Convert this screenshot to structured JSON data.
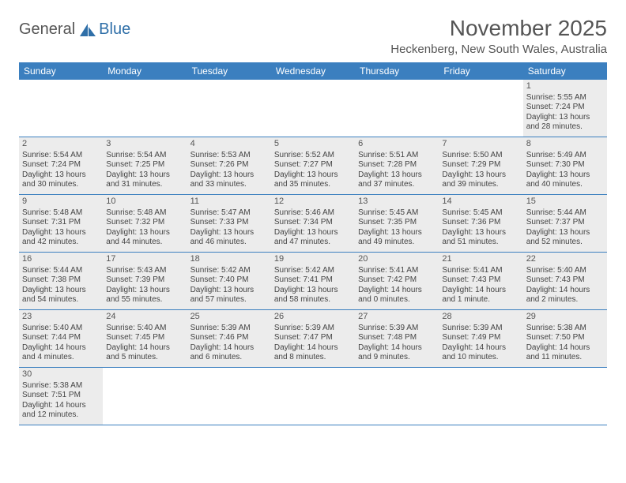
{
  "logo": {
    "text1": "General",
    "text2": "Blue",
    "color_general": "#555555",
    "color_blue": "#2f6fa8",
    "sail_color": "#2f6fa8"
  },
  "title": "November 2025",
  "location": "Heckenberg, New South Wales, Australia",
  "colors": {
    "header_bg": "#3b7fbf",
    "header_text": "#ffffff",
    "shaded_bg": "#ececec",
    "border": "#3b7fbf",
    "text": "#444444"
  },
  "dow": [
    "Sunday",
    "Monday",
    "Tuesday",
    "Wednesday",
    "Thursday",
    "Friday",
    "Saturday"
  ],
  "weeks": [
    [
      null,
      null,
      null,
      null,
      null,
      null,
      {
        "n": "1",
        "sr": "Sunrise: 5:55 AM",
        "ss": "Sunset: 7:24 PM",
        "dl": "Daylight: 13 hours and 28 minutes."
      }
    ],
    [
      {
        "n": "2",
        "sr": "Sunrise: 5:54 AM",
        "ss": "Sunset: 7:24 PM",
        "dl": "Daylight: 13 hours and 30 minutes."
      },
      {
        "n": "3",
        "sr": "Sunrise: 5:54 AM",
        "ss": "Sunset: 7:25 PM",
        "dl": "Daylight: 13 hours and 31 minutes."
      },
      {
        "n": "4",
        "sr": "Sunrise: 5:53 AM",
        "ss": "Sunset: 7:26 PM",
        "dl": "Daylight: 13 hours and 33 minutes."
      },
      {
        "n": "5",
        "sr": "Sunrise: 5:52 AM",
        "ss": "Sunset: 7:27 PM",
        "dl": "Daylight: 13 hours and 35 minutes."
      },
      {
        "n": "6",
        "sr": "Sunrise: 5:51 AM",
        "ss": "Sunset: 7:28 PM",
        "dl": "Daylight: 13 hours and 37 minutes."
      },
      {
        "n": "7",
        "sr": "Sunrise: 5:50 AM",
        "ss": "Sunset: 7:29 PM",
        "dl": "Daylight: 13 hours and 39 minutes."
      },
      {
        "n": "8",
        "sr": "Sunrise: 5:49 AM",
        "ss": "Sunset: 7:30 PM",
        "dl": "Daylight: 13 hours and 40 minutes."
      }
    ],
    [
      {
        "n": "9",
        "sr": "Sunrise: 5:48 AM",
        "ss": "Sunset: 7:31 PM",
        "dl": "Daylight: 13 hours and 42 minutes."
      },
      {
        "n": "10",
        "sr": "Sunrise: 5:48 AM",
        "ss": "Sunset: 7:32 PM",
        "dl": "Daylight: 13 hours and 44 minutes."
      },
      {
        "n": "11",
        "sr": "Sunrise: 5:47 AM",
        "ss": "Sunset: 7:33 PM",
        "dl": "Daylight: 13 hours and 46 minutes."
      },
      {
        "n": "12",
        "sr": "Sunrise: 5:46 AM",
        "ss": "Sunset: 7:34 PM",
        "dl": "Daylight: 13 hours and 47 minutes."
      },
      {
        "n": "13",
        "sr": "Sunrise: 5:45 AM",
        "ss": "Sunset: 7:35 PM",
        "dl": "Daylight: 13 hours and 49 minutes."
      },
      {
        "n": "14",
        "sr": "Sunrise: 5:45 AM",
        "ss": "Sunset: 7:36 PM",
        "dl": "Daylight: 13 hours and 51 minutes."
      },
      {
        "n": "15",
        "sr": "Sunrise: 5:44 AM",
        "ss": "Sunset: 7:37 PM",
        "dl": "Daylight: 13 hours and 52 minutes."
      }
    ],
    [
      {
        "n": "16",
        "sr": "Sunrise: 5:44 AM",
        "ss": "Sunset: 7:38 PM",
        "dl": "Daylight: 13 hours and 54 minutes."
      },
      {
        "n": "17",
        "sr": "Sunrise: 5:43 AM",
        "ss": "Sunset: 7:39 PM",
        "dl": "Daylight: 13 hours and 55 minutes."
      },
      {
        "n": "18",
        "sr": "Sunrise: 5:42 AM",
        "ss": "Sunset: 7:40 PM",
        "dl": "Daylight: 13 hours and 57 minutes."
      },
      {
        "n": "19",
        "sr": "Sunrise: 5:42 AM",
        "ss": "Sunset: 7:41 PM",
        "dl": "Daylight: 13 hours and 58 minutes."
      },
      {
        "n": "20",
        "sr": "Sunrise: 5:41 AM",
        "ss": "Sunset: 7:42 PM",
        "dl": "Daylight: 14 hours and 0 minutes."
      },
      {
        "n": "21",
        "sr": "Sunrise: 5:41 AM",
        "ss": "Sunset: 7:43 PM",
        "dl": "Daylight: 14 hours and 1 minute."
      },
      {
        "n": "22",
        "sr": "Sunrise: 5:40 AM",
        "ss": "Sunset: 7:43 PM",
        "dl": "Daylight: 14 hours and 2 minutes."
      }
    ],
    [
      {
        "n": "23",
        "sr": "Sunrise: 5:40 AM",
        "ss": "Sunset: 7:44 PM",
        "dl": "Daylight: 14 hours and 4 minutes."
      },
      {
        "n": "24",
        "sr": "Sunrise: 5:40 AM",
        "ss": "Sunset: 7:45 PM",
        "dl": "Daylight: 14 hours and 5 minutes."
      },
      {
        "n": "25",
        "sr": "Sunrise: 5:39 AM",
        "ss": "Sunset: 7:46 PM",
        "dl": "Daylight: 14 hours and 6 minutes."
      },
      {
        "n": "26",
        "sr": "Sunrise: 5:39 AM",
        "ss": "Sunset: 7:47 PM",
        "dl": "Daylight: 14 hours and 8 minutes."
      },
      {
        "n": "27",
        "sr": "Sunrise: 5:39 AM",
        "ss": "Sunset: 7:48 PM",
        "dl": "Daylight: 14 hours and 9 minutes."
      },
      {
        "n": "28",
        "sr": "Sunrise: 5:39 AM",
        "ss": "Sunset: 7:49 PM",
        "dl": "Daylight: 14 hours and 10 minutes."
      },
      {
        "n": "29",
        "sr": "Sunrise: 5:38 AM",
        "ss": "Sunset: 7:50 PM",
        "dl": "Daylight: 14 hours and 11 minutes."
      }
    ],
    [
      {
        "n": "30",
        "sr": "Sunrise: 5:38 AM",
        "ss": "Sunset: 7:51 PM",
        "dl": "Daylight: 14 hours and 12 minutes."
      },
      null,
      null,
      null,
      null,
      null,
      null
    ]
  ]
}
